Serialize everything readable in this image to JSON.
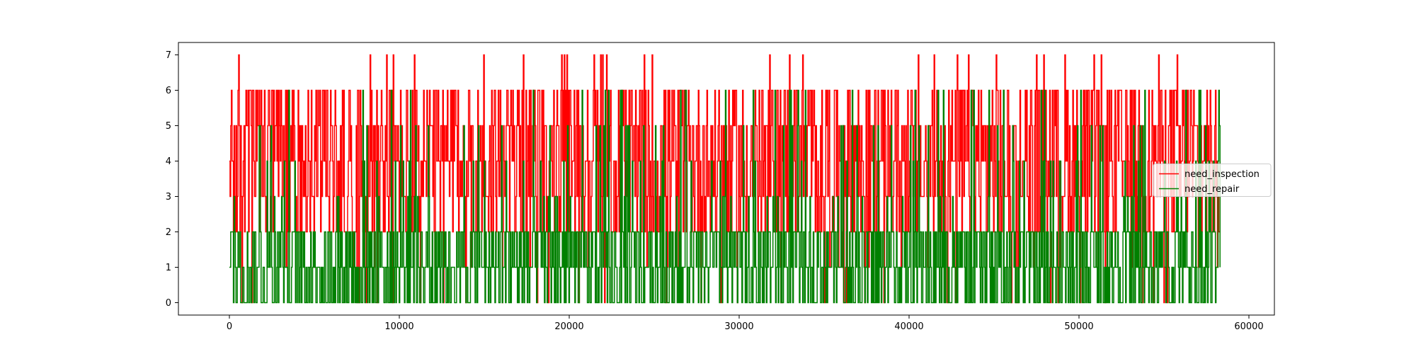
{
  "chart_data": {
    "type": "line",
    "title": "",
    "xlabel": "",
    "ylabel": "",
    "xlim": [
      -3000,
      61500
    ],
    "ylim": [
      -0.35,
      7.35
    ],
    "grid": false,
    "legend_placement": "center-right",
    "x_ticks": [
      0,
      10000,
      20000,
      30000,
      40000,
      50000,
      60000
    ],
    "x_tick_labels": [
      "0",
      "10000",
      "20000",
      "30000",
      "40000",
      "50000",
      "60000"
    ],
    "y_ticks": [
      0,
      1,
      2,
      3,
      4,
      5,
      6,
      7
    ],
    "y_tick_labels": [
      "0",
      "1",
      "2",
      "3",
      "4",
      "5",
      "6",
      "7"
    ],
    "x_range": [
      0,
      58300
    ],
    "series": [
      {
        "name": "need_inspection",
        "color": "#ff0000",
        "dense_band": [
          2,
          6
        ],
        "min": 0,
        "max": 7,
        "levels": [
          0,
          1,
          2,
          3,
          4,
          5,
          6,
          7
        ]
      },
      {
        "name": "need_repair",
        "color": "#008000",
        "dense_band": [
          0,
          2
        ],
        "min": 0,
        "max": 6,
        "levels": [
          0,
          1,
          2,
          3,
          4,
          5,
          6
        ]
      }
    ]
  }
}
